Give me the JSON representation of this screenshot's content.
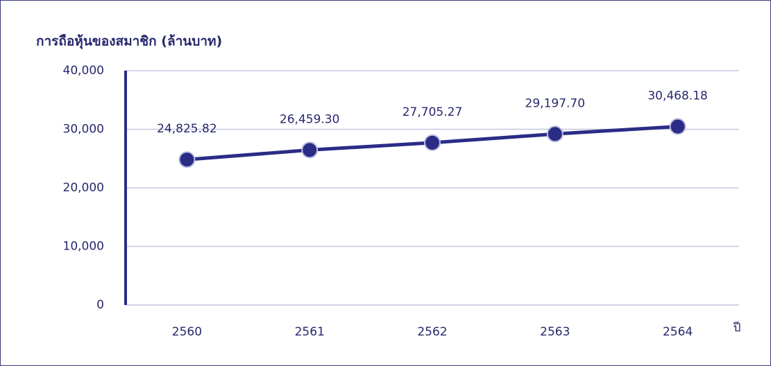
{
  "chart_data": {
    "type": "line",
    "y_label": "การถือหุ้นของสมาชิก (ล้านบาท)",
    "x_label": "ปี",
    "categories": [
      "2560",
      "2561",
      "2562",
      "2563",
      "2564"
    ],
    "values": [
      24825.82,
      26459.3,
      27705.27,
      29197.7,
      30468.18
    ],
    "value_labels": [
      "24,825.82",
      "26,459.30",
      "27,705.27",
      "29,197.70",
      "30,468.18"
    ],
    "color": "#2b2c86",
    "ylim": [
      0,
      40000
    ],
    "yticks": [
      0,
      {
        "value": 10000,
        "label": "10,000"
      },
      {
        "value": 20000,
        "label": "20,000"
      },
      {
        "value": 30000,
        "label": "30,000"
      },
      {
        "value": 40000,
        "label": "40,000"
      }
    ],
    "grid": true
  }
}
